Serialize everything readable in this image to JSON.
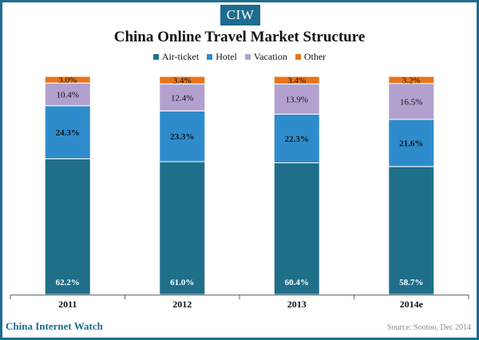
{
  "logo": "CIW",
  "footer": {
    "brand": "China Internet Watch",
    "source": "Source: Sootoo, Dec 2014"
  },
  "colors": {
    "frame": "#1d6c8e",
    "air": "#1f6f8b",
    "hotel": "#2e8ccc",
    "vacation": "#b2a1cf",
    "other": "#e8731a"
  },
  "chart_data": {
    "type": "bar",
    "stacked": true,
    "title": "China Online Travel Market Structure",
    "xlabel": "",
    "ylabel": "",
    "ylim": [
      0,
      100
    ],
    "categories": [
      "2011",
      "2012",
      "2013",
      "2014e"
    ],
    "legend_position": "top",
    "series": [
      {
        "name": "Air-ticket",
        "color": "#1f6f8b",
        "values": [
          62.2,
          61.0,
          60.4,
          58.7
        ],
        "labels": [
          "62.2%",
          "61.0%",
          "60.4%",
          "58.7%"
        ]
      },
      {
        "name": "Hotel",
        "color": "#2e8ccc",
        "values": [
          24.3,
          23.3,
          22.3,
          21.6
        ],
        "labels": [
          "24.3%",
          "23.3%",
          "22.3%",
          "21.6%"
        ]
      },
      {
        "name": "Vacation",
        "color": "#b2a1cf",
        "values": [
          10.4,
          12.4,
          13.9,
          16.5
        ],
        "labels": [
          "10.4%",
          "12.4%",
          "13.9%",
          "16.5%"
        ]
      },
      {
        "name": "Other",
        "color": "#e8731a",
        "values": [
          3.0,
          3.4,
          3.4,
          3.2
        ],
        "labels": [
          "3.0%",
          "3.4%",
          "3.4%",
          "3.2%"
        ]
      }
    ]
  }
}
